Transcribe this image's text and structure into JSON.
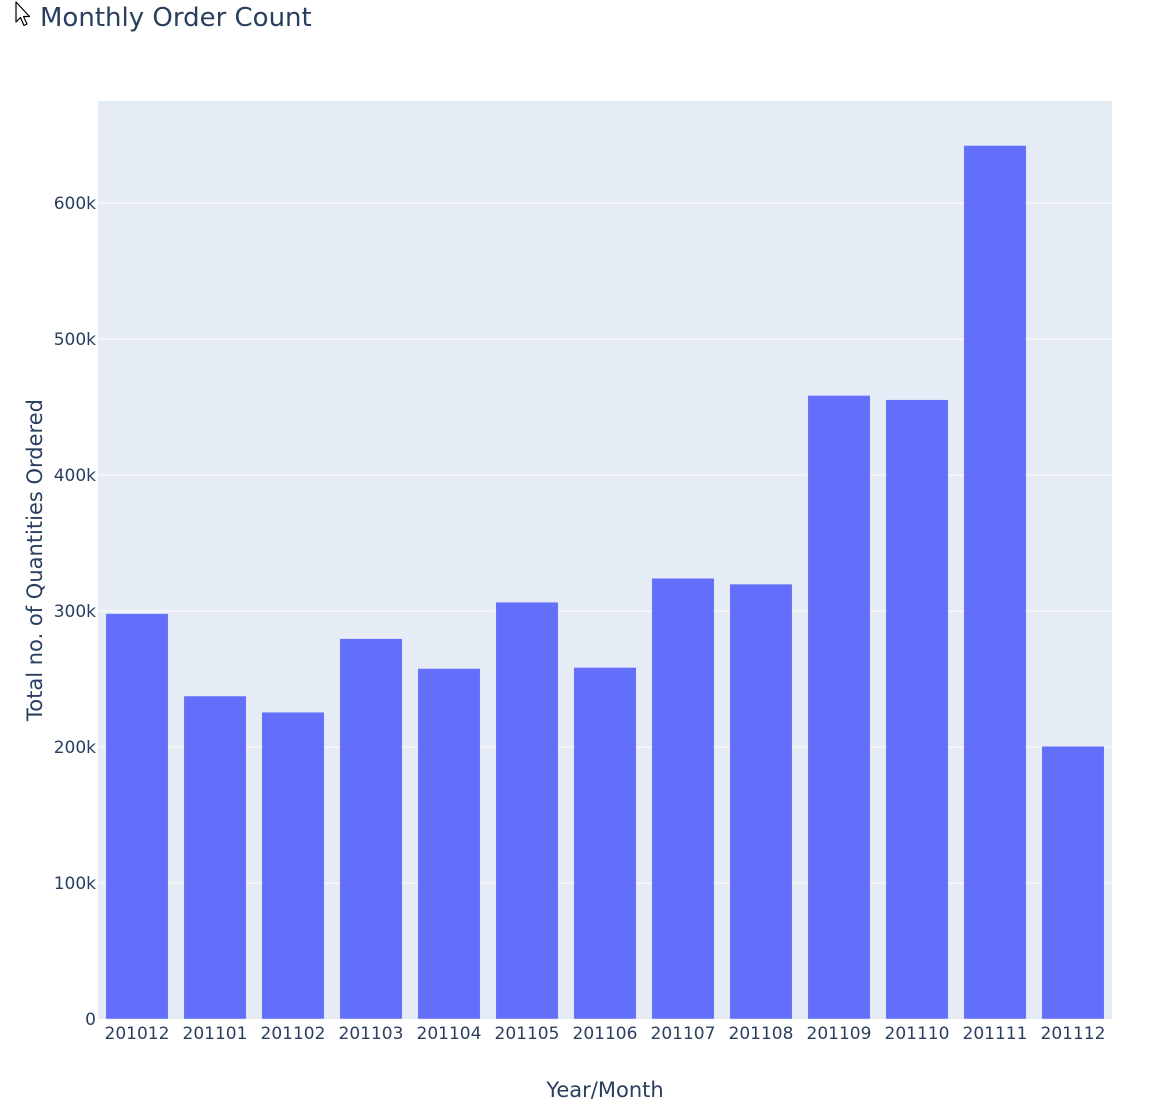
{
  "chart_data": {
    "type": "bar",
    "title": "Monthly Order Count",
    "xlabel": "Year/Month",
    "ylabel": "Total no. of Quantities Ordered",
    "categories": [
      "201012",
      "201101",
      "201102",
      "201103",
      "201104",
      "201105",
      "201106",
      "201107",
      "201108",
      "201109",
      "201110",
      "201111",
      "201112"
    ],
    "values": [
      298100,
      237500,
      225600,
      279700,
      257700,
      306500,
      258500,
      324100,
      319800,
      458500,
      455400,
      642300,
      200500
    ],
    "ylim": [
      0,
      675000
    ],
    "yticks": [
      0,
      100000,
      200000,
      300000,
      400000,
      500000,
      600000
    ],
    "ytick_labels": [
      "0",
      "100k",
      "200k",
      "300k",
      "400k",
      "500k",
      "600k"
    ],
    "grid": true,
    "colors": {
      "bar": "#636efa",
      "plot_bg": "#e5ecf6",
      "grid": "#ffffff",
      "text": "#2a3f5f"
    }
  },
  "cursor": {
    "icon": "mouse-pointer-icon"
  }
}
